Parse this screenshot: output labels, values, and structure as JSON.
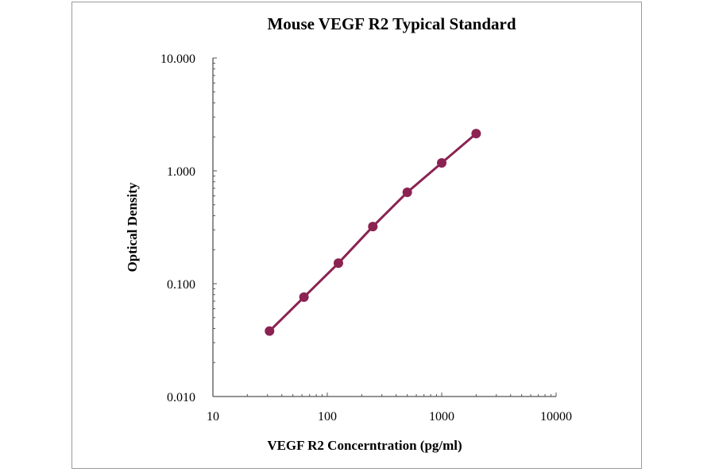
{
  "chart_data": {
    "type": "line",
    "title": "Mouse VEGF R2 Typical Standard",
    "xlabel": "VEGF R2 Concerntration (pg/ml)",
    "ylabel": "Optical Density",
    "xscale": "log",
    "yscale": "log",
    "xlim": [
      10,
      10000
    ],
    "ylim": [
      0.01,
      10
    ],
    "xticks": [
      "10",
      "100",
      "1000",
      "10000"
    ],
    "yticks": [
      "0.010",
      "0.100",
      "1.000",
      "10.000"
    ],
    "grid": false,
    "series": [
      {
        "color": "#8b2252",
        "x": [
          31.25,
          62.5,
          125,
          250,
          500,
          1000,
          2000
        ],
        "y": [
          0.038,
          0.076,
          0.152,
          0.321,
          0.646,
          1.176,
          2.14
        ]
      }
    ]
  }
}
